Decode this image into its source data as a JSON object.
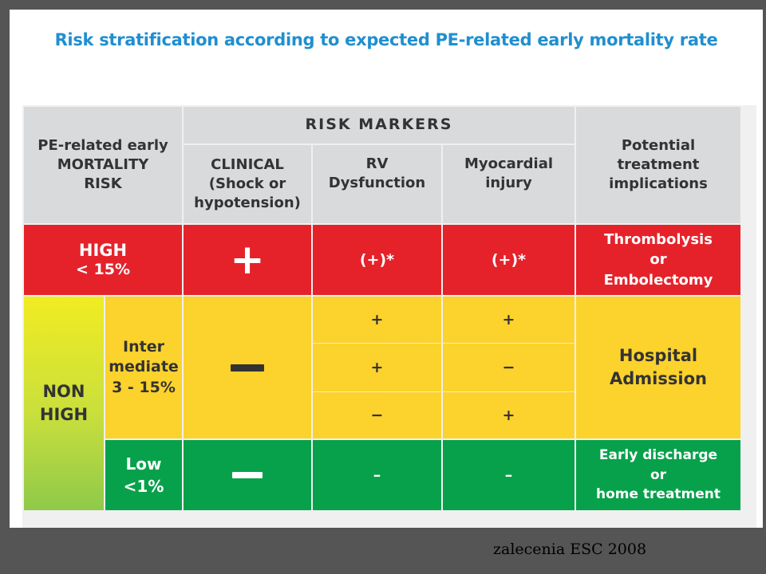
{
  "title": "Risk stratification according to expected PE-related early mortality rate",
  "header": {
    "risk_col": "PE-related early MORTALITY RISK",
    "risk_col_lines": [
      "PE-related early",
      "MORTALITY",
      "RISK"
    ],
    "markers": "RISK MARKERS",
    "clinical_lines": [
      "CLINICAL",
      "(Shock or",
      "hypotension)"
    ],
    "rv_lines": [
      "RV",
      "Dysfunction"
    ],
    "myo_lines": [
      "Myocardial",
      "injury"
    ],
    "treatment_lines": [
      "Potential",
      "treatment",
      "implications"
    ]
  },
  "high": {
    "label_lines": [
      "HIGH",
      "< 15%"
    ],
    "clinical": "+",
    "rv": "(+)*",
    "myo": "(+)*",
    "treatment_lines": [
      "Thrombolysis",
      "or",
      "Embolectomy"
    ]
  },
  "non_high": {
    "label_lines": [
      "NON",
      "HIGH"
    ],
    "intermediate": {
      "label_lines": [
        "Inter",
        "mediate",
        "3 - 15%"
      ],
      "clinical": "−",
      "rows": [
        {
          "rv": "+",
          "myo": "+"
        },
        {
          "rv": "+",
          "myo": "−"
        },
        {
          "rv": "−",
          "myo": "+"
        }
      ],
      "treatment_lines": [
        "Hospital",
        "Admission"
      ]
    },
    "low": {
      "label_lines": [
        "Low",
        "<1%"
      ],
      "clinical": "−",
      "rv": "–",
      "myo": "–",
      "treatment_lines": [
        "Early discharge",
        "or",
        "home treatment"
      ]
    }
  },
  "caption": "zalecenia ESC 2008",
  "colors": {
    "title": "#1f8fcf",
    "header_bg": "#d9dadc",
    "high": "#e5222a",
    "intermediate": "#fcd22c",
    "low": "#08a14b",
    "background": "#555555"
  }
}
